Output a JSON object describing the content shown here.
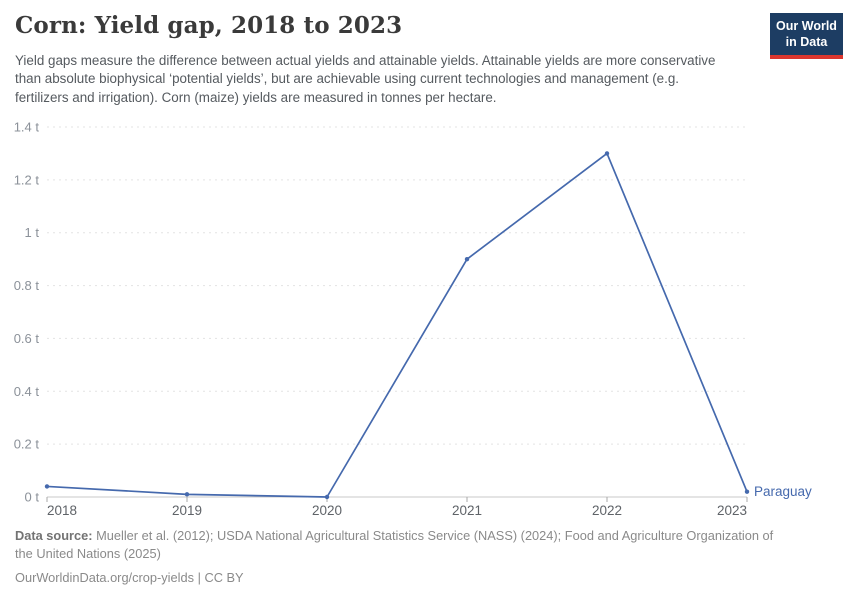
{
  "header": {
    "title": "Corn: Yield gap, 2018 to 2023",
    "subtitle": "Yield gaps measure the difference between actual yields and attainable yields. Attainable yields are more conservative than absolute biophysical ‘potential yields’, but are achievable using current technologies and management (e.g. fertilizers and irrigation). Corn (maize) yields are measured in tonnes per hectare.",
    "logo": {
      "line1": "Our World",
      "line2": "in Data"
    }
  },
  "chart_data": {
    "type": "line",
    "title": "Corn: Yield gap, 2018 to 2023",
    "x": [
      2018,
      2019,
      2020,
      2021,
      2022,
      2023
    ],
    "xtick_labels": [
      "2018",
      "2019",
      "2020",
      "2021",
      "2022",
      "2023"
    ],
    "series": [
      {
        "name": "Paraguay",
        "values": [
          0.04,
          0.01,
          0,
          0.9,
          1.3,
          0.02
        ],
        "color": "#4569ad"
      }
    ],
    "unit": "t",
    "ylabel": "",
    "xlabel": "",
    "ylim": [
      0,
      1.4
    ],
    "yticks": [
      0,
      0.2,
      0.4,
      0.6,
      0.8,
      1,
      1.2,
      1.4
    ],
    "ytick_labels": [
      "0 t",
      "0.2 t",
      "0.4 t",
      "0.6 t",
      "0.8 t",
      "1 t",
      "1.2 t",
      "1.4 t"
    ],
    "grid": "horizontal-dashed",
    "legend_position": "end-of-line"
  },
  "footer": {
    "datasource_label": "Data source:",
    "datasource_text": "Mueller et al. (2012); USDA National Agricultural Statistics Service (NASS) (2024); Food and Agriculture Organization of the United Nations (2025)",
    "url": "OurWorldinData.org/crop-yields",
    "separator": "|",
    "license": "CC BY"
  },
  "colors": {
    "line": "#4569ad",
    "logo_background": "#1d3d63",
    "logo_underline": "#dc362e",
    "gridline": "#e3e3e3",
    "axis": "#c9c9c9"
  }
}
